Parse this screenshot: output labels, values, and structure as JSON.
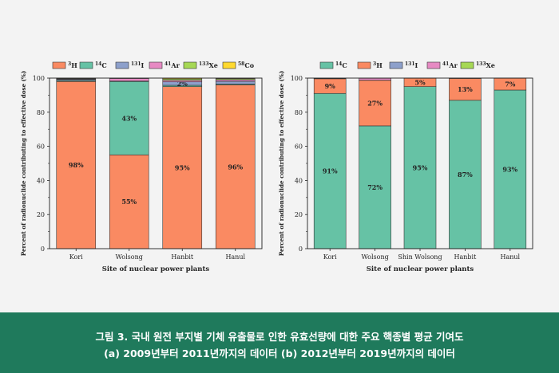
{
  "caption": {
    "line1": "그림 3. 국내 원전 부지별 기체 유출물로 인한 유효선량에 대한 주요 핵종별 평균 기여도",
    "line2": "(a) 2009년부터 2011년까지의 데이터 (b) 2012년부터 2019년까지의 데이터"
  },
  "chart_data": [
    {
      "type": "bar",
      "stacked": true,
      "xlabel": "Site of nuclear power plants",
      "ylabel": "Percent of radionuclide contributing to effective dose (%)",
      "ylim": [
        0,
        100
      ],
      "yticks": [
        0,
        20,
        40,
        60,
        80,
        100
      ],
      "grid": false,
      "legend_position": "top",
      "categories": [
        "Kori",
        "Wolsong",
        "Hanbit",
        "Hanul"
      ],
      "series": [
        {
          "name": "3H",
          "sup": "3",
          "base": "H",
          "color": "#fa8a62",
          "values": [
            98,
            55,
            95,
            96
          ],
          "labels": [
            "98%",
            "55%",
            "95%",
            "96%"
          ]
        },
        {
          "name": "14C",
          "sup": "14",
          "base": "C",
          "color": "#66c2a5",
          "values": [
            0.5,
            43,
            0.8,
            0.5
          ],
          "labels": [
            "",
            "43%",
            "",
            ""
          ]
        },
        {
          "name": "131I",
          "sup": "131",
          "base": "I",
          "color": "#8da0cb",
          "values": [
            0.6,
            0.3,
            2,
            1.6
          ],
          "labels": [
            "",
            "",
            "2%",
            ""
          ]
        },
        {
          "name": "41Ar",
          "sup": "41",
          "base": "Ar",
          "color": "#e78ac3",
          "values": [
            0.3,
            1.5,
            0.9,
            0.9
          ],
          "labels": [
            "",
            "",
            "",
            ""
          ]
        },
        {
          "name": "133Xe",
          "sup": "133",
          "base": "Xe",
          "color": "#a6d854",
          "values": [
            0.3,
            0.1,
            0.8,
            0.6
          ],
          "labels": [
            "",
            "",
            "",
            ""
          ]
        },
        {
          "name": "58Co",
          "sup": "58",
          "base": "Co",
          "color": "#ffd92f",
          "values": [
            0.3,
            0.1,
            0.5,
            0.4
          ],
          "labels": [
            "",
            "",
            "",
            ""
          ]
        }
      ]
    },
    {
      "type": "bar",
      "stacked": true,
      "xlabel": "Site of nuclear power plants",
      "ylabel": "Percent of radionuclide contributing to effective dose (%)",
      "ylim": [
        0,
        100
      ],
      "yticks": [
        0,
        20,
        40,
        60,
        80,
        100
      ],
      "grid": false,
      "legend_position": "top",
      "categories": [
        "Kori",
        "Wolsong",
        "Shin Wolsong",
        "Hanbit",
        "Hanul"
      ],
      "series": [
        {
          "name": "14C",
          "sup": "14",
          "base": "C",
          "color": "#66c2a5",
          "values": [
            91,
            72,
            95,
            87,
            93
          ],
          "labels": [
            "91%",
            "72%",
            "95%",
            "87%",
            "93%"
          ]
        },
        {
          "name": "3H",
          "sup": "3",
          "base": "H",
          "color": "#fa8a62",
          "values": [
            8.6,
            26.7,
            4.9,
            12.8,
            6.9
          ],
          "labels": [
            "9%",
            "27%",
            "5%",
            "13%",
            "7%"
          ]
        },
        {
          "name": "131I",
          "sup": "131",
          "base": "I",
          "color": "#8da0cb",
          "values": [
            0.2,
            0.1,
            0.05,
            0.1,
            0.05
          ],
          "labels": [
            "",
            "",
            "",
            "",
            ""
          ]
        },
        {
          "name": "41Ar",
          "sup": "41",
          "base": "Ar",
          "color": "#e78ac3",
          "values": [
            0.1,
            1.1,
            0.03,
            0.05,
            0.03
          ],
          "labels": [
            "",
            "",
            "",
            "",
            ""
          ]
        },
        {
          "name": "133Xe",
          "sup": "133",
          "base": "Xe",
          "color": "#a6d854",
          "values": [
            0.1,
            0.1,
            0.02,
            0.05,
            0.02
          ],
          "labels": [
            "",
            "",
            "",
            "",
            ""
          ]
        }
      ]
    }
  ]
}
